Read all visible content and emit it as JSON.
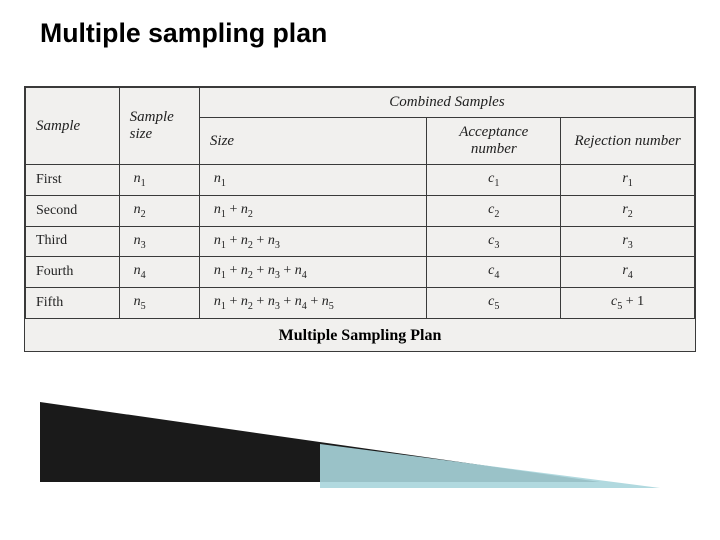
{
  "title": {
    "text": "Multiple sampling plan",
    "fontsize_pt": 20,
    "color": "#000000",
    "font_family": "Verdana"
  },
  "table": {
    "type": "table",
    "background_color": "#f1f0ee",
    "border_color": "#3a3a3a",
    "text_color": "#222222",
    "header_fontsize_pt": 15,
    "body_fontsize_pt": 14,
    "header": {
      "combined_span_label": "Combined Samples",
      "columns": [
        {
          "key": "sample",
          "label": "Sample",
          "width_pct": 14,
          "align": "left"
        },
        {
          "key": "sample_size",
          "label": "Sample size",
          "width_pct": 12,
          "align": "left"
        },
        {
          "key": "combined_size",
          "label": "Size",
          "width_pct": 34,
          "align": "left"
        },
        {
          "key": "acceptance",
          "label": "Acceptance number",
          "width_pct": 20,
          "align": "center"
        },
        {
          "key": "rejection",
          "label": "Rejection number",
          "width_pct": 20,
          "align": "center"
        }
      ]
    },
    "rows": [
      {
        "sample": "First",
        "sample_size": "n₁",
        "combined_size": "n₁",
        "acceptance": "c₁",
        "rejection": "r₁"
      },
      {
        "sample": "Second",
        "sample_size": "n₂",
        "combined_size": "n₁ + n₂",
        "acceptance": "c₂",
        "rejection": "r₂"
      },
      {
        "sample": "Third",
        "sample_size": "n₃",
        "combined_size": "n₁ + n₂ + n₃",
        "acceptance": "c₃",
        "rejection": "r₃"
      },
      {
        "sample": "Fourth",
        "sample_size": "n₄",
        "combined_size": "n₁ + n₂ + n₃ + n₄",
        "acceptance": "c₄",
        "rejection": "r₄"
      },
      {
        "sample": "Fifth",
        "sample_size": "n₅",
        "combined_size": "n₁ + n₂ + n₃ + n₄ + n₅",
        "acceptance": "c₅",
        "rejection": "c₅ + 1"
      }
    ],
    "caption": {
      "text": "Multiple Sampling Plan",
      "fontsize_pt": 16
    }
  },
  "decoration": {
    "wedge_dark_color": "#1a1a1a",
    "wedge_teal_color": "#a9d5db"
  }
}
